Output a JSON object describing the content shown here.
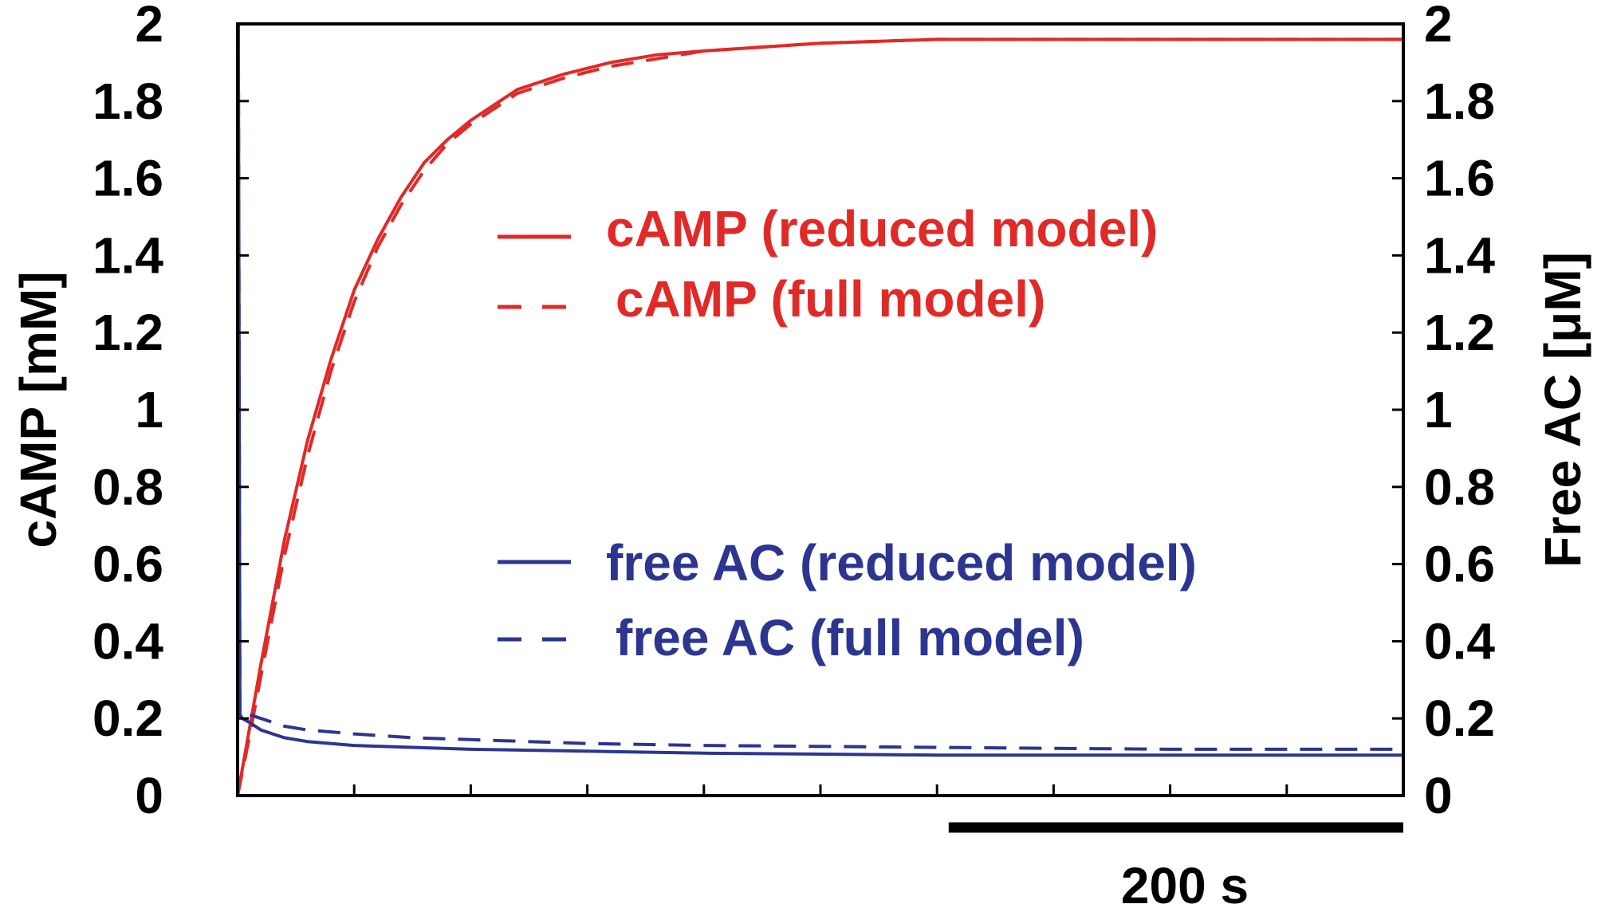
{
  "chart_data": {
    "type": "line",
    "title": "",
    "xlabel": "",
    "ylabel_left": "cAMP [mM]",
    "ylabel_right": "Free AC [μM]",
    "xlim": [
      0,
      500
    ],
    "ylim_left": [
      0,
      2
    ],
    "ylim_right": [
      0,
      2
    ],
    "yticks": [
      "0",
      "0.2",
      "0.4",
      "0.6",
      "0.8",
      "1",
      "1.2",
      "1.4",
      "1.6",
      "1.8",
      "2"
    ],
    "x_minor_ticks": [
      50,
      100,
      150,
      200,
      250,
      300,
      350,
      400,
      450
    ],
    "grid": false,
    "legend_placement": "center-right",
    "scale_bar": {
      "label": "200 s",
      "x_start": 305,
      "x_end": 500
    },
    "colors": {
      "camp": "#e02a27",
      "free_ac": "#2c3590",
      "axis": "#000000"
    },
    "series": [
      {
        "name": "cAMP (reduced model)",
        "axis": "left",
        "color": "#e02a27",
        "dash": "solid",
        "x": [
          0,
          5,
          10,
          20,
          30,
          40,
          50,
          60,
          70,
          80,
          90,
          100,
          120,
          140,
          160,
          180,
          200,
          250,
          300,
          350,
          400,
          450,
          500
        ],
        "y": [
          0,
          0.17,
          0.34,
          0.66,
          0.92,
          1.13,
          1.31,
          1.44,
          1.55,
          1.64,
          1.7,
          1.75,
          1.83,
          1.87,
          1.9,
          1.92,
          1.93,
          1.95,
          1.96,
          1.96,
          1.96,
          1.96,
          1.96
        ]
      },
      {
        "name": "cAMP (full model)",
        "axis": "left",
        "color": "#e02a27",
        "dash": "dashed",
        "x": [
          0,
          5,
          10,
          20,
          30,
          40,
          50,
          60,
          70,
          80,
          90,
          100,
          120,
          140,
          160,
          180,
          200,
          250,
          300,
          350,
          400,
          450,
          500
        ],
        "y": [
          0,
          0.15,
          0.31,
          0.62,
          0.88,
          1.1,
          1.28,
          1.42,
          1.53,
          1.62,
          1.69,
          1.74,
          1.82,
          1.86,
          1.89,
          1.91,
          1.93,
          1.95,
          1.96,
          1.96,
          1.96,
          1.96,
          1.96
        ]
      },
      {
        "name": "free AC (reduced model)",
        "axis": "right",
        "color": "#2c3590",
        "dash": "solid",
        "x": [
          0,
          0.3,
          1,
          2,
          5,
          10,
          20,
          30,
          50,
          75,
          100,
          150,
          200,
          300,
          400,
          500
        ],
        "y": [
          2.0,
          2.0,
          0.21,
          0.2,
          0.19,
          0.17,
          0.15,
          0.14,
          0.13,
          0.125,
          0.12,
          0.115,
          0.11,
          0.105,
          0.105,
          0.105
        ]
      },
      {
        "name": "free AC (full model)",
        "axis": "right",
        "color": "#2c3590",
        "dash": "dashed",
        "x": [
          0,
          0.3,
          1,
          2,
          5,
          10,
          20,
          30,
          50,
          75,
          100,
          150,
          200,
          300,
          400,
          500
        ],
        "y": [
          2.0,
          2.0,
          0.21,
          0.21,
          0.21,
          0.2,
          0.18,
          0.17,
          0.16,
          0.15,
          0.145,
          0.135,
          0.13,
          0.125,
          0.12,
          0.12
        ]
      }
    ]
  }
}
